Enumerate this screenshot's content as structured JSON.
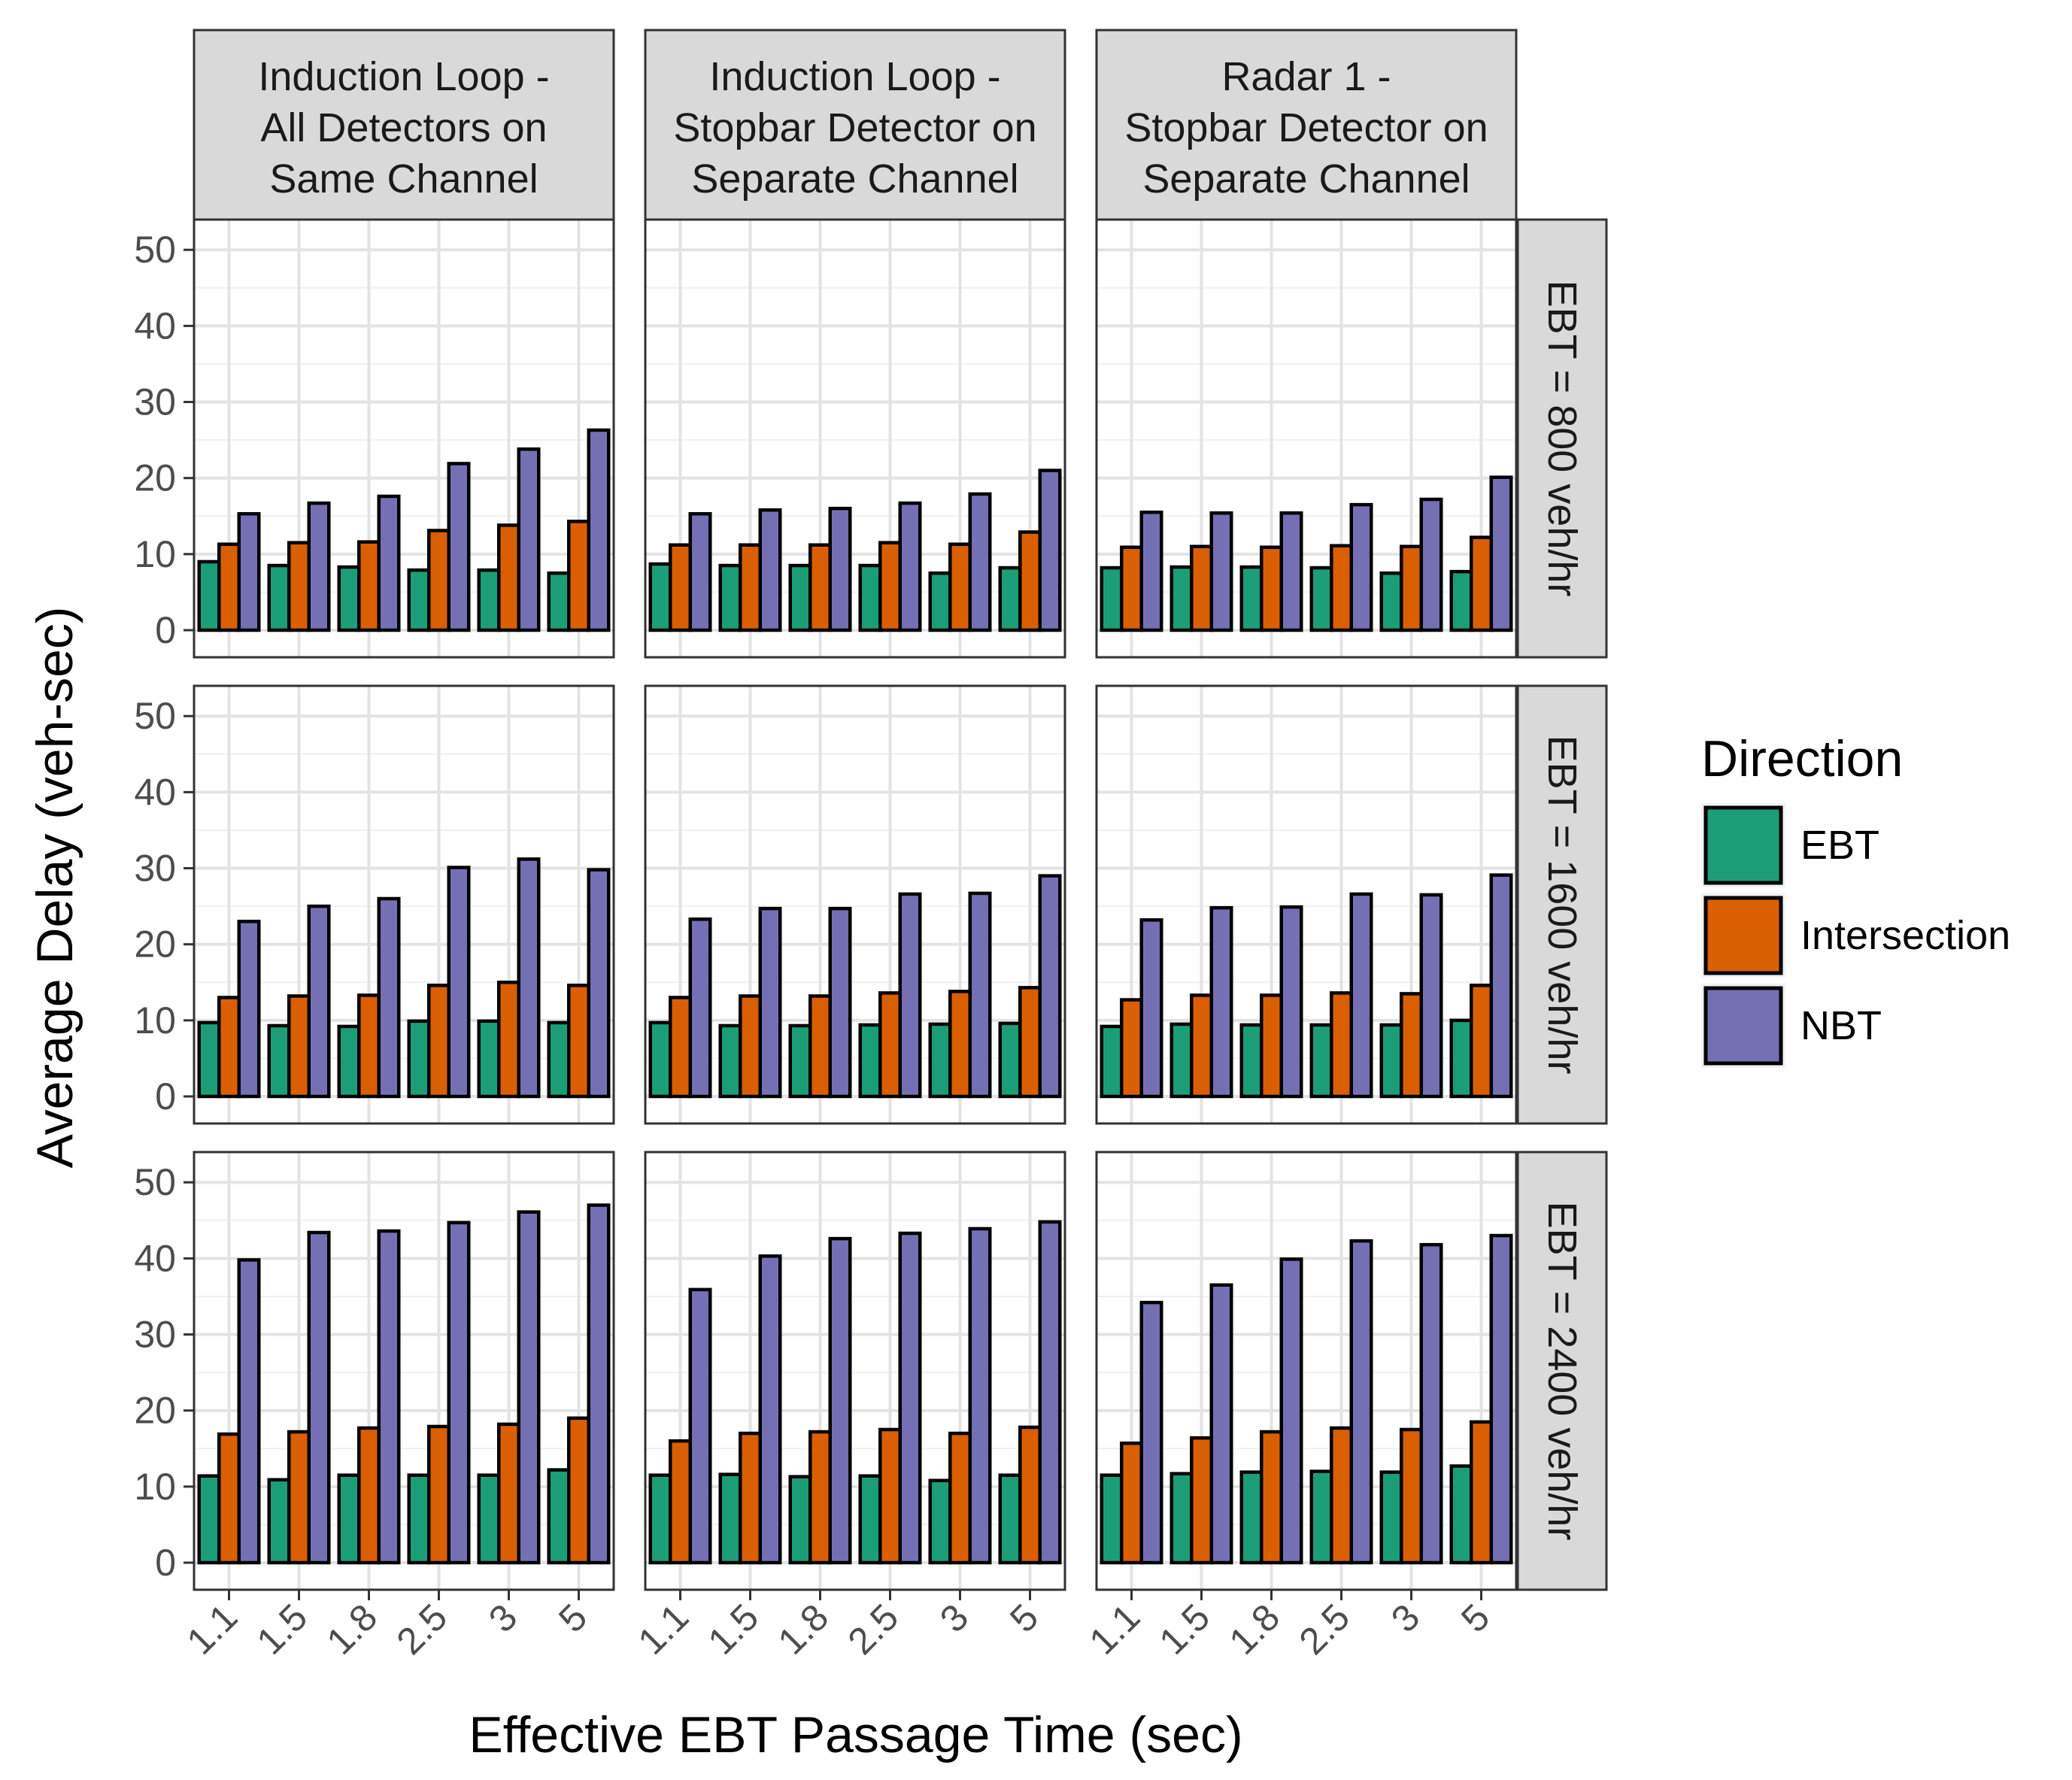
{
  "chart_data": {
    "type": "bar",
    "xlabel": "Effective EBT Passage Time (sec)",
    "ylabel": "Average Delay (veh-sec)",
    "ylim": [
      0,
      52
    ],
    "yticks": [
      0,
      10,
      20,
      30,
      40,
      50
    ],
    "categories": [
      "1.1",
      "1.5",
      "1.8",
      "2.5",
      "3",
      "5"
    ],
    "grid": true,
    "legend": {
      "title": "Direction",
      "position": "right",
      "entries": [
        {
          "name": "EBT",
          "color": "#1b9e77"
        },
        {
          "name": "Intersection",
          "color": "#d95f02"
        },
        {
          "name": "NBT",
          "color": "#7570b3"
        }
      ]
    },
    "columns": [
      [
        "Induction Loop -",
        "All Detectors on",
        "Same Channel"
      ],
      [
        "Induction Loop -",
        "Stopbar Detector on",
        "Separate Channel"
      ],
      [
        "Radar 1 -",
        "Stopbar Detector on",
        "Separate Channel"
      ]
    ],
    "rows": [
      "EBT = 800 veh/hr",
      "EBT = 1600 veh/hr",
      "EBT = 2400 veh/hr"
    ],
    "panels": [
      [
        {
          "EBT": [
            9.0,
            8.5,
            8.3,
            7.9,
            7.9,
            7.5
          ],
          "Intersection": [
            11.3,
            11.5,
            11.6,
            13.1,
            13.8,
            14.3
          ],
          "NBT": [
            15.3,
            16.7,
            17.6,
            21.9,
            23.8,
            26.3
          ]
        },
        {
          "EBT": [
            8.7,
            8.5,
            8.5,
            8.5,
            7.5,
            8.2
          ],
          "Intersection": [
            11.2,
            11.2,
            11.2,
            11.5,
            11.3,
            12.9
          ],
          "NBT": [
            15.3,
            15.8,
            16.0,
            16.7,
            17.9,
            21.0
          ]
        },
        {
          "EBT": [
            8.2,
            8.3,
            8.3,
            8.2,
            7.5,
            7.7
          ],
          "Intersection": [
            10.9,
            11.0,
            10.9,
            11.1,
            11.0,
            12.2
          ],
          "NBT": [
            15.5,
            15.4,
            15.4,
            16.5,
            17.2,
            20.1
          ]
        }
      ],
      [
        {
          "EBT": [
            9.7,
            9.3,
            9.2,
            9.9,
            9.9,
            9.7
          ],
          "Intersection": [
            13.0,
            13.2,
            13.3,
            14.6,
            15.0,
            14.6
          ],
          "NBT": [
            23.0,
            25.0,
            26.0,
            30.1,
            31.2,
            29.8
          ]
        },
        {
          "EBT": [
            9.7,
            9.3,
            9.3,
            9.4,
            9.5,
            9.6
          ],
          "Intersection": [
            13.0,
            13.2,
            13.2,
            13.6,
            13.8,
            14.3
          ],
          "NBT": [
            23.3,
            24.7,
            24.7,
            26.6,
            26.7,
            29.0
          ]
        },
        {
          "EBT": [
            9.2,
            9.5,
            9.4,
            9.4,
            9.4,
            10.0
          ],
          "Intersection": [
            12.7,
            13.3,
            13.3,
            13.6,
            13.5,
            14.6
          ],
          "NBT": [
            23.2,
            24.8,
            24.9,
            26.6,
            26.5,
            29.1
          ]
        }
      ],
      [
        {
          "EBT": [
            11.4,
            10.9,
            11.5,
            11.5,
            11.5,
            12.2
          ],
          "Intersection": [
            16.9,
            17.2,
            17.7,
            17.9,
            18.2,
            19.0
          ],
          "NBT": [
            39.8,
            43.4,
            43.6,
            44.7,
            46.1,
            47.0
          ]
        },
        {
          "EBT": [
            11.5,
            11.6,
            11.3,
            11.4,
            10.8,
            11.5
          ],
          "Intersection": [
            16.0,
            17.0,
            17.2,
            17.5,
            17.0,
            17.8
          ],
          "NBT": [
            35.9,
            40.3,
            42.6,
            43.3,
            43.9,
            44.8
          ]
        },
        {
          "EBT": [
            11.5,
            11.7,
            11.9,
            12.0,
            11.9,
            12.7
          ],
          "Intersection": [
            15.7,
            16.4,
            17.2,
            17.7,
            17.5,
            18.5
          ],
          "NBT": [
            34.2,
            36.5,
            39.9,
            42.3,
            41.8,
            43.0
          ]
        }
      ]
    ]
  }
}
